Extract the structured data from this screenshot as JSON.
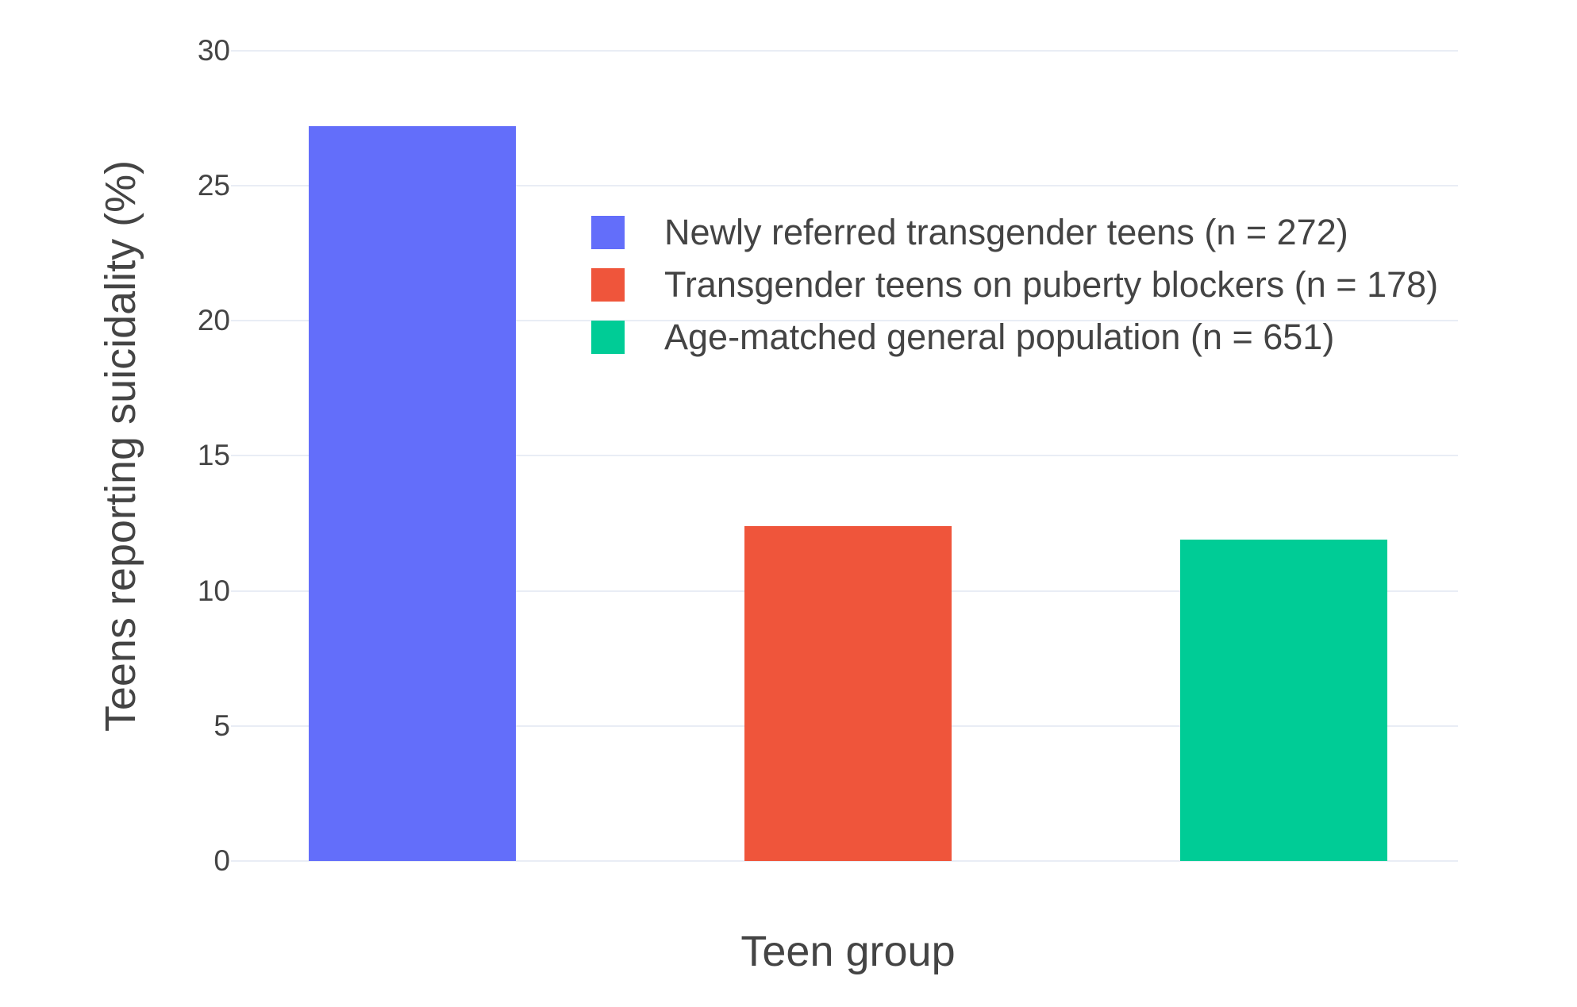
{
  "chart_data": {
    "type": "bar",
    "title": "",
    "xlabel": "Teen group",
    "ylabel": "Teens reporting suicidality (%)",
    "categories": [
      "Newly referred transgender teens (n = 272)",
      "Transgender teens on puberty blockers (n = 178)",
      "Age-matched general population (n = 651)"
    ],
    "values": [
      27.2,
      12.4,
      11.9
    ],
    "bar_colors": [
      "#636EFA",
      "#EF553B",
      "#00CC96"
    ],
    "yticks": [
      0,
      5,
      10,
      15,
      20,
      25,
      30
    ],
    "ylim": [
      0,
      30.7
    ],
    "grid": true,
    "legend_position": "inside upper-left of plot",
    "legend": [
      {
        "label": "Newly referred transgender teens (n = 272)",
        "color": "#636EFA"
      },
      {
        "label": "Transgender teens on puberty blockers (n = 178)",
        "color": "#EF553B"
      },
      {
        "label": "Age-matched general population (n = 651)",
        "color": "#00CC96"
      }
    ]
  },
  "theme": {
    "background_color": "#FFFFFF",
    "grid_color": "#E9EDF5",
    "zero_line_color": "#E9EDF5",
    "text_color": "#444444"
  }
}
